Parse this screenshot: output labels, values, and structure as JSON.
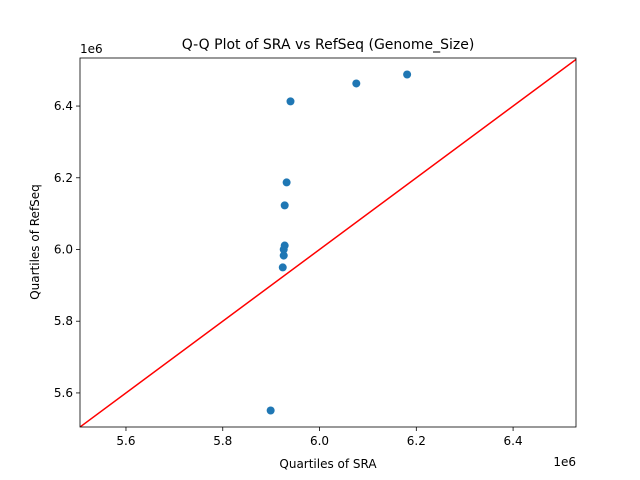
{
  "chart_data": {
    "type": "scatter",
    "title": "Q-Q Plot of SRA vs RefSeq (Genome_Size)",
    "x_label": "Quartiles of SRA",
    "y_label": "Quartiles of RefSeq",
    "x_offset_label": "1e6",
    "y_offset_label": "1e6",
    "color": "#1f77b4",
    "reference_line_color": "#ff0000",
    "x": [
      5899000,
      5924000,
      5926000,
      5926000,
      5928000,
      5928000,
      5932000,
      5940000,
      6076000,
      6181000
    ],
    "values": [
      5551000,
      5950000,
      5983000,
      6000000,
      6011000,
      6123000,
      6187000,
      6413000,
      6463000,
      6488000
    ],
    "xlim": [
      5505000,
      6530000
    ],
    "ylim": [
      5505000,
      6534000
    ],
    "xticks": [
      {
        "value": 5600000,
        "label": "5.6"
      },
      {
        "value": 5800000,
        "label": "5.8"
      },
      {
        "value": 6000000,
        "label": "6.0"
      },
      {
        "value": 6200000,
        "label": "6.2"
      },
      {
        "value": 6400000,
        "label": "6.4"
      }
    ],
    "yticks": [
      {
        "value": 5600000,
        "label": "5.6"
      },
      {
        "value": 5800000,
        "label": "5.8"
      },
      {
        "value": 6000000,
        "label": "6.0"
      },
      {
        "value": 6200000,
        "label": "6.2"
      },
      {
        "value": 6400000,
        "label": "6.4"
      }
    ]
  }
}
